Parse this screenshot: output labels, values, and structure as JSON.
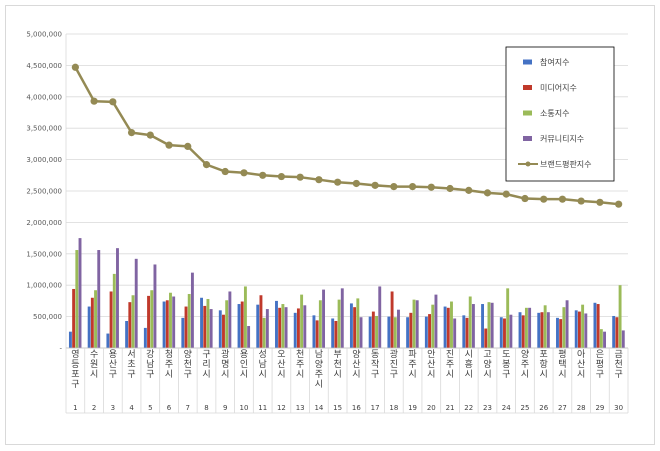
{
  "chart_data": {
    "type": "bar",
    "combo": "bar + line",
    "categories": [
      "영등포구",
      "수원시",
      "용산구",
      "서초구",
      "강남구",
      "청주시",
      "양천구",
      "구리시",
      "광명시",
      "용인시",
      "성남시",
      "오산시",
      "천주시",
      "남양주시",
      "부천시",
      "양산시",
      "동작구",
      "광진구",
      "파주시",
      "안산시",
      "진주시",
      "시흥시",
      "고양시",
      "도봉구",
      "양주시",
      "포항시",
      "평택시",
      "아산시",
      "은평구",
      "금천구"
    ],
    "category_numbers": [
      "1",
      "2",
      "3",
      "4",
      "5",
      "6",
      "7",
      "8",
      "9",
      "10",
      "11",
      "12",
      "13",
      "14",
      "15",
      "16",
      "17",
      "18",
      "19",
      "20",
      "21",
      "22",
      "23",
      "24",
      "25",
      "26",
      "27",
      "28",
      "29",
      "30"
    ],
    "yticks": [
      "-",
      "500,000",
      "1,000,000",
      "1,500,000",
      "2,000,000",
      "2,500,000",
      "3,000,000",
      "3,500,000",
      "4,000,000",
      "4,500,000",
      "5,000,000"
    ],
    "ylim": [
      0,
      5000000
    ],
    "legend_position": "top-right",
    "series": [
      {
        "name": "참여지수",
        "color": "#4472c4",
        "values": [
          260000,
          660000,
          230000,
          430000,
          320000,
          740000,
          480000,
          800000,
          600000,
          700000,
          690000,
          750000,
          560000,
          520000,
          470000,
          710000,
          500000,
          500000,
          490000,
          500000,
          660000,
          520000,
          700000,
          490000,
          570000,
          560000,
          480000,
          600000,
          720000,
          510000
        ]
      },
      {
        "name": "미디어지수",
        "color": "#c0392b",
        "values": [
          940000,
          800000,
          900000,
          730000,
          830000,
          760000,
          660000,
          670000,
          530000,
          740000,
          840000,
          640000,
          630000,
          440000,
          430000,
          650000,
          580000,
          900000,
          560000,
          540000,
          640000,
          480000,
          310000,
          470000,
          520000,
          570000,
          460000,
          580000,
          700000,
          490000
        ]
      },
      {
        "name": "소통지수",
        "color": "#9bbb59",
        "values": [
          1560000,
          920000,
          1180000,
          840000,
          920000,
          880000,
          860000,
          780000,
          760000,
          980000,
          480000,
          700000,
          850000,
          760000,
          770000,
          790000,
          510000,
          490000,
          770000,
          690000,
          740000,
          820000,
          730000,
          950000,
          640000,
          680000,
          650000,
          690000,
          300000,
          1000000
        ]
      },
      {
        "name": "커뮤니티지수",
        "color": "#8064a2",
        "values": [
          1750000,
          1560000,
          1590000,
          1420000,
          1330000,
          820000,
          1200000,
          620000,
          900000,
          350000,
          620000,
          650000,
          680000,
          930000,
          950000,
          490000,
          980000,
          610000,
          760000,
          850000,
          470000,
          700000,
          720000,
          530000,
          640000,
          570000,
          760000,
          550000,
          260000,
          280000
        ]
      },
      {
        "name": "브랜드평판지수",
        "color": "#948a54",
        "line": true,
        "values": [
          4470000,
          3930000,
          3920000,
          3430000,
          3390000,
          3230000,
          3210000,
          2920000,
          2810000,
          2790000,
          2750000,
          2730000,
          2720000,
          2680000,
          2640000,
          2620000,
          2590000,
          2570000,
          2570000,
          2560000,
          2540000,
          2510000,
          2470000,
          2450000,
          2380000,
          2370000,
          2370000,
          2340000,
          2320000,
          2290000
        ]
      }
    ]
  }
}
